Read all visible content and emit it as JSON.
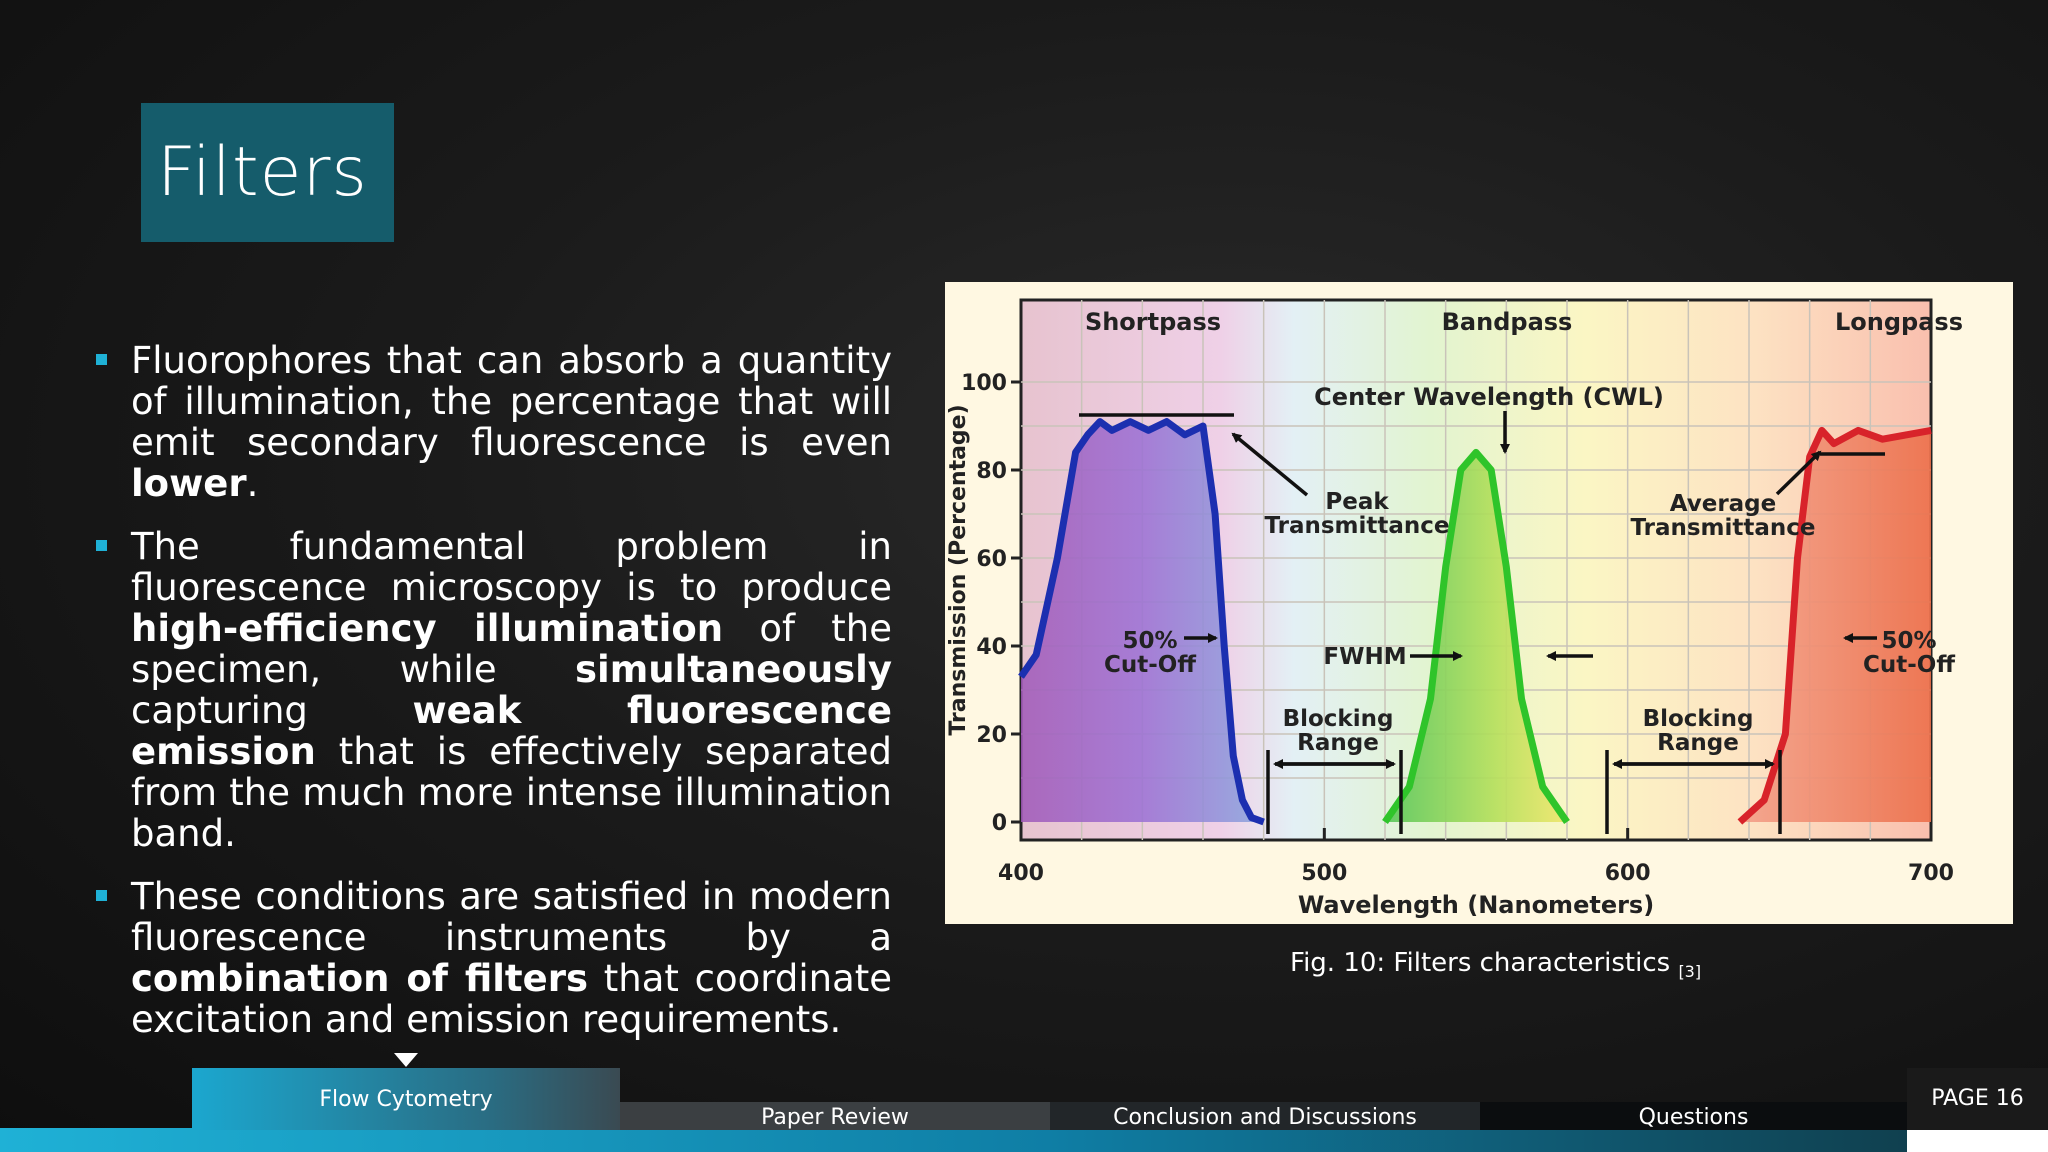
{
  "slide": {
    "title": "Filters",
    "bullets": [
      {
        "segments": [
          {
            "text": "Fluorophores that can absorb a quantity of illumination, the percentage that will emit secondary fluorescence is even "
          },
          {
            "text": "lower",
            "bold": true
          },
          {
            "text": "."
          }
        ]
      },
      {
        "segments": [
          {
            "text": "The fundamental problem in fluorescence microscopy is to produce "
          },
          {
            "text": "high-efficiency illumination",
            "bold": true
          },
          {
            "text": " of the specimen, while "
          },
          {
            "text": "simultaneously",
            "bold": true
          },
          {
            "text": " capturing "
          },
          {
            "text": "weak fluorescence emission",
            "bold": true
          },
          {
            "text": " that is effectively separated from the much more intense illumination band."
          }
        ]
      },
      {
        "segments": [
          {
            "text": "These conditions are satisfied in modern fluorescence instruments by a "
          },
          {
            "text": "combination of filters",
            "bold": true
          },
          {
            "text": " that coordinate excitation and emission requirements."
          }
        ]
      }
    ],
    "caption": {
      "text": "Fig. 10: Filters characteristics ",
      "ref": "[3]"
    }
  },
  "figure": {
    "section_labels": {
      "shortpass": "Shortpass",
      "bandpass": "Bandpass",
      "longpass": "Longpass"
    },
    "annotations": {
      "cwl": "Center Wavelength (CWL)",
      "peak_1": "Peak",
      "peak_2": "Transmittance",
      "avg_1": "Average",
      "avg_2": "Transmittance",
      "cut_left_1": "50%",
      "cut_left_2": "Cut-Off",
      "cut_right_1": "50%",
      "cut_right_2": "Cut-Off",
      "fwhm": "FWHM",
      "block_left_1": "Blocking",
      "block_left_2": "Range",
      "block_right_1": "Blocking",
      "block_right_2": "Range"
    },
    "colors": {
      "shortpass": "#1c2fb0",
      "bandpass": "#2fc42a",
      "longpass": "#d8232a"
    }
  },
  "chart_data": {
    "type": "line",
    "xlabel": "Wavelength (Nanometers)",
    "ylabel": "Transmission (Percentage)",
    "xlim": [
      400,
      700
    ],
    "ylim": [
      0,
      100
    ],
    "x_ticks": [
      "400",
      "500",
      "600",
      "700"
    ],
    "y_ticks": [
      "0",
      "20",
      "40",
      "60",
      "80",
      "100"
    ],
    "grid": true,
    "series": [
      {
        "name": "Shortpass",
        "x": [
          400,
          405,
          412,
          418,
          422,
          426,
          430,
          436,
          442,
          448,
          454,
          460,
          464,
          467,
          470,
          473,
          476,
          480
        ],
        "y": [
          33,
          38,
          60,
          84,
          88,
          91,
          89,
          91,
          89,
          91,
          88,
          90,
          70,
          40,
          15,
          5,
          1,
          0
        ]
      },
      {
        "name": "Bandpass",
        "x": [
          520,
          528,
          535,
          540,
          545,
          550,
          555,
          560,
          565,
          572,
          580
        ],
        "y": [
          0,
          8,
          28,
          58,
          80,
          84,
          80,
          58,
          28,
          8,
          0
        ]
      },
      {
        "name": "Longpass",
        "x": [
          637,
          645,
          652,
          656,
          660,
          664,
          668,
          676,
          684,
          692,
          700
        ],
        "y": [
          0,
          5,
          20,
          60,
          83,
          89,
          86,
          89,
          87,
          88,
          89
        ]
      }
    ]
  },
  "nav": {
    "tabs": [
      "Flow Cytometry",
      "Paper Review",
      "Conclusion and Discussions",
      "Questions"
    ],
    "page": "PAGE 16"
  }
}
